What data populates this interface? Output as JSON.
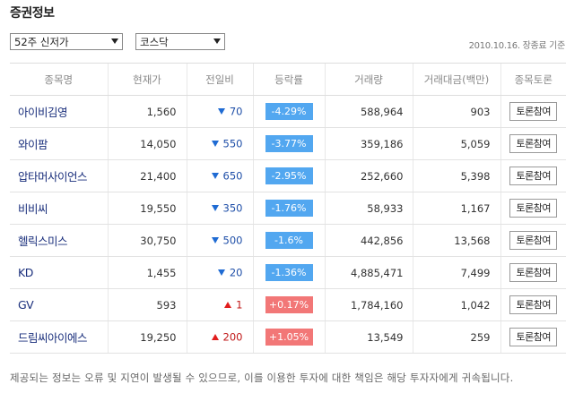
{
  "title": "증권정보",
  "filters": {
    "period": "52주 신저가",
    "market": "코스닥"
  },
  "date_note": "2010.10.16. 장종료 기준",
  "columns": [
    "종목명",
    "현재가",
    "전일비",
    "등락률",
    "거래량",
    "거래대금(백만)",
    "종목토론"
  ],
  "rows": [
    {
      "name": "아이비김영",
      "price": "1,560",
      "diff": "70",
      "dir": "down",
      "rate": "-4.29%",
      "volume": "588,964",
      "amount": "903",
      "button": "토론참여"
    },
    {
      "name": "와이팜",
      "price": "14,050",
      "diff": "550",
      "dir": "down",
      "rate": "-3.77%",
      "volume": "359,186",
      "amount": "5,059",
      "button": "토론참여"
    },
    {
      "name": "압타머사이언스",
      "price": "21,400",
      "diff": "650",
      "dir": "down",
      "rate": "-2.95%",
      "volume": "252,660",
      "amount": "5,398",
      "button": "토론참여"
    },
    {
      "name": "비비씨",
      "price": "19,550",
      "diff": "350",
      "dir": "down",
      "rate": "-1.76%",
      "volume": "58,933",
      "amount": "1,167",
      "button": "토론참여"
    },
    {
      "name": "헬릭스미스",
      "price": "30,750",
      "diff": "500",
      "dir": "down",
      "rate": "-1.6%",
      "volume": "442,856",
      "amount": "13,568",
      "button": "토론참여"
    },
    {
      "name": "KD",
      "price": "1,455",
      "diff": "20",
      "dir": "down",
      "rate": "-1.36%",
      "volume": "4,885,471",
      "amount": "7,499",
      "button": "토론참여"
    },
    {
      "name": "GV",
      "price": "593",
      "diff": "1",
      "dir": "up",
      "rate": "+0.17%",
      "volume": "1,784,160",
      "amount": "1,042",
      "button": "토론참여"
    },
    {
      "name": "드림씨아이에스",
      "price": "19,250",
      "diff": "200",
      "dir": "up",
      "rate": "+1.05%",
      "volume": "13,549",
      "amount": "259",
      "button": "토론참여"
    }
  ],
  "notice": "제공되는 정보는 오류 및 지연이 발생될 수 있으므로, 이를 이용한 투자에 대한 책임은 해당 투자자에게 귀속됩니다.",
  "colors": {
    "down": "#52a7f0",
    "up": "#f27777",
    "down_arrow": "#1f6bd3",
    "up_arrow": "#e11d1d",
    "name_text": "#1a2f7c"
  },
  "icons": {
    "down": "triangle-down-icon",
    "up": "triangle-up-icon",
    "dropdown": "chevron-down-icon"
  }
}
